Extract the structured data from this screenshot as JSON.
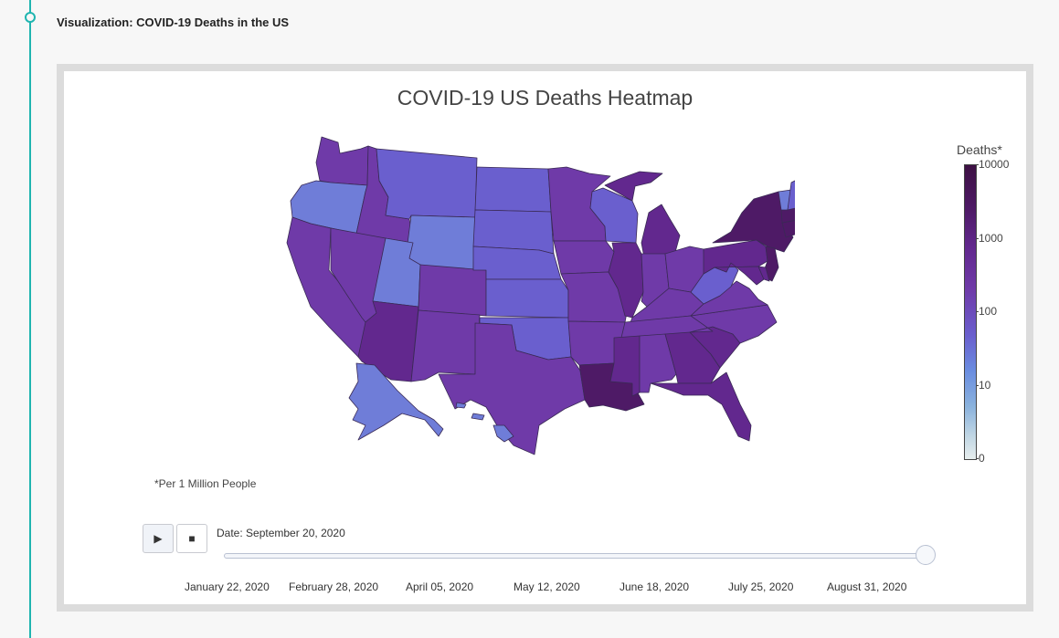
{
  "section": {
    "title": "Visualization: COVID-19 Deaths in the US"
  },
  "chart": {
    "title": "COVID-19 US Deaths Heatmap",
    "colorbar_title": "Deaths*",
    "colorbar_ticks": [
      "10000",
      "1000",
      "100",
      "10",
      "0"
    ],
    "footnote": "*Per 1 Million People"
  },
  "player": {
    "play_symbol": "▶",
    "stop_symbol": "■",
    "current_date_label": "Date: September 20, 2020",
    "slider_position_fraction": 1.0,
    "slider_labels": [
      "January 22, 2020",
      "February 28, 2020",
      "April 05, 2020",
      "May 12, 2020",
      "June 18, 2020",
      "July 25, 2020",
      "August 31, 2020"
    ]
  },
  "colors": {
    "accent_line": "#1fb5b0",
    "very_high": "#4e1a66",
    "high": "#62288e",
    "mid": "#6f3aa8",
    "low": "#6a5fce",
    "very_low": "#6f7dd8"
  },
  "chart_data": {
    "type": "heatmap",
    "title": "COVID-19 US Deaths Heatmap",
    "colorbar": {
      "title": "Deaths*",
      "scale": "log",
      "ticks": [
        0,
        10,
        100,
        1000,
        10000
      ]
    },
    "date": "September 20, 2020",
    "note": "*Per 1 Million People",
    "regions": [
      {
        "state": "New Jersey",
        "band": "very_high"
      },
      {
        "state": "New York",
        "band": "very_high"
      },
      {
        "state": "Massachusetts",
        "band": "very_high"
      },
      {
        "state": "Connecticut",
        "band": "very_high"
      },
      {
        "state": "Louisiana",
        "band": "very_high"
      },
      {
        "state": "Mississippi",
        "band": "high"
      },
      {
        "state": "Michigan",
        "band": "high"
      },
      {
        "state": "Illinois",
        "band": "high"
      },
      {
        "state": "Arizona",
        "band": "high"
      },
      {
        "state": "Pennsylvania",
        "band": "high"
      },
      {
        "state": "Maryland",
        "band": "high"
      },
      {
        "state": "Delaware",
        "band": "high"
      },
      {
        "state": "Rhode Island",
        "band": "very_high"
      },
      {
        "state": "South Carolina",
        "band": "high"
      },
      {
        "state": "Georgia",
        "band": "high"
      },
      {
        "state": "Florida",
        "band": "high"
      },
      {
        "state": "Washington",
        "band": "mid"
      },
      {
        "state": "Idaho",
        "band": "mid"
      },
      {
        "state": "California",
        "band": "mid"
      },
      {
        "state": "Nevada",
        "band": "mid"
      },
      {
        "state": "New Mexico",
        "band": "mid"
      },
      {
        "state": "Texas",
        "band": "mid"
      },
      {
        "state": "Colorado",
        "band": "mid"
      },
      {
        "state": "Iowa",
        "band": "mid"
      },
      {
        "state": "Minnesota",
        "band": "mid"
      },
      {
        "state": "Missouri",
        "band": "mid"
      },
      {
        "state": "Arkansas",
        "band": "mid"
      },
      {
        "state": "Alabama",
        "band": "mid"
      },
      {
        "state": "Tennessee",
        "band": "mid"
      },
      {
        "state": "Indiana",
        "band": "mid"
      },
      {
        "state": "Ohio",
        "band": "mid"
      },
      {
        "state": "Kentucky",
        "band": "mid"
      },
      {
        "state": "Virginia",
        "band": "mid"
      },
      {
        "state": "North Carolina",
        "band": "mid"
      },
      {
        "state": "Wisconsin",
        "band": "low"
      },
      {
        "state": "Nebraska",
        "band": "low"
      },
      {
        "state": "Kansas",
        "band": "low"
      },
      {
        "state": "Oklahoma",
        "band": "low"
      },
      {
        "state": "South Dakota",
        "band": "low"
      },
      {
        "state": "North Dakota",
        "band": "low"
      },
      {
        "state": "Montana",
        "band": "low"
      },
      {
        "state": "West Virginia",
        "band": "low"
      },
      {
        "state": "New Hampshire",
        "band": "low"
      },
      {
        "state": "Oregon",
        "band": "very_low"
      },
      {
        "state": "Wyoming",
        "band": "very_low"
      },
      {
        "state": "Utah",
        "band": "very_low"
      },
      {
        "state": "Maine",
        "band": "very_low"
      },
      {
        "state": "Vermont",
        "band": "very_low"
      },
      {
        "state": "Alaska",
        "band": "very_low"
      },
      {
        "state": "Hawaii",
        "band": "very_low"
      }
    ]
  }
}
